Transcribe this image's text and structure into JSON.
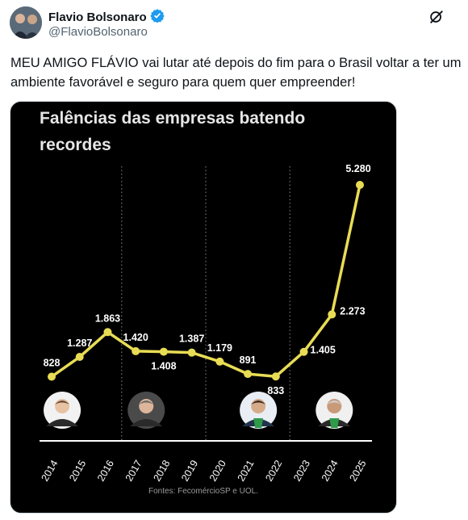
{
  "author": {
    "display_name": "Flavio Bolsonaro",
    "handle": "@FlavioBolsonaro",
    "verified": true
  },
  "tweet": {
    "text": "MEU AMIGO FLÁVIO vai lutar até depois do fim para o Brasil voltar a ter um ambiente favorável e seguro para quem quer empreender!"
  },
  "icons": {
    "verified": "verified-badge-icon",
    "grok": "grok-icon",
    "more": "more-options-icon"
  },
  "colors": {
    "line": "#e8dc55",
    "background": "#000000",
    "verified": "#1d9bf0"
  },
  "chart_data": {
    "type": "line",
    "title": "Falências das empresas batendo recordes",
    "title_lines": [
      "Falências das empresas batendo",
      "recordes"
    ],
    "categories": [
      "2014",
      "2015",
      "2016",
      "2017",
      "2018",
      "2019",
      "2020",
      "2021",
      "2022",
      "2023",
      "2024",
      "2025"
    ],
    "values": [
      828,
      1287,
      1863,
      1420,
      1408,
      1387,
      1179,
      891,
      833,
      1405,
      2273,
      5280
    ],
    "value_labels": [
      "828",
      "1.287",
      "1.863",
      "1.420",
      "1.408",
      "1.387",
      "1.179",
      "891",
      "833",
      "1.405",
      "2.273",
      "5.280"
    ],
    "source": "Fontes: FecomércioSP e UOL.",
    "period_dividers_after": [
      "2016",
      "2019",
      "2022"
    ],
    "portrait_icons": [
      "president-portrait-2014-icon",
      "president-portrait-2017-icon",
      "president-portrait-2020-icon",
      "president-portrait-2024-icon"
    ],
    "xlabel": "",
    "ylabel": "",
    "grid": false,
    "legend": "none"
  }
}
